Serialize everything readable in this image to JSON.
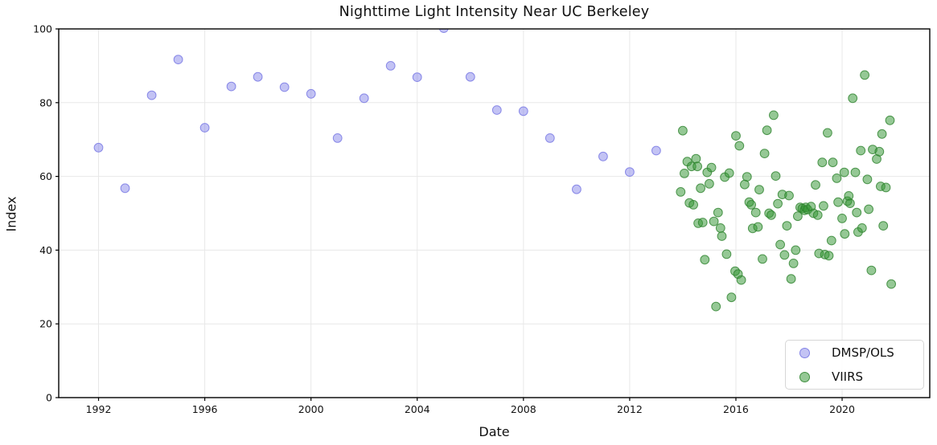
{
  "accent_colors": {
    "dmsp_fill": "rgba(122,122,230,0.45)",
    "dmsp_edge": "rgba(108,108,225,0.75)",
    "viirs_fill": "rgba(52,150,52,0.52)",
    "viirs_edge": "rgba(45,130,45,0.8)",
    "grid": "#e8e8e8",
    "spine": "#000000"
  },
  "chart_data": {
    "type": "scatter",
    "title": "Nighttime Light Intensity Near UC Berkeley",
    "xlabel": "Date",
    "ylabel": "Index",
    "xlim": [
      1990.5,
      2023.3
    ],
    "ylim": [
      0,
      100
    ],
    "xticks": [
      1992,
      1996,
      2000,
      2004,
      2008,
      2012,
      2016,
      2020
    ],
    "yticks": [
      0,
      20,
      40,
      60,
      80,
      100
    ],
    "grid": true,
    "legend_position": "lower right",
    "series": [
      {
        "name": "DMSP/OLS",
        "marker_fill": "rgba(122,122,230,0.45)",
        "marker_edge": "rgba(108,108,225,0.75)",
        "points": [
          [
            1992,
            67.8
          ],
          [
            1993,
            56.8
          ],
          [
            1994,
            82.0
          ],
          [
            1995,
            91.7
          ],
          [
            1996,
            73.2
          ],
          [
            1997,
            84.4
          ],
          [
            1998,
            87.0
          ],
          [
            1999,
            84.2
          ],
          [
            2000,
            82.4
          ],
          [
            2001,
            70.4
          ],
          [
            2002,
            81.2
          ],
          [
            2003,
            90.0
          ],
          [
            2004,
            86.9
          ],
          [
            2005,
            100.2
          ],
          [
            2006,
            87.0
          ],
          [
            2007,
            78.0
          ],
          [
            2008,
            77.7
          ],
          [
            2009,
            70.4
          ],
          [
            2010,
            56.5
          ],
          [
            2011,
            65.4
          ],
          [
            2012,
            61.2
          ],
          [
            2013,
            67.0
          ]
        ]
      },
      {
        "name": "VIIRS",
        "marker_fill": "rgba(52,150,52,0.52)",
        "marker_edge": "rgba(45,130,45,0.8)",
        "points": [
          [
            2013.92,
            55.8
          ],
          [
            2014.0,
            72.4
          ],
          [
            2014.06,
            60.8
          ],
          [
            2014.17,
            64.0
          ],
          [
            2014.25,
            52.8
          ],
          [
            2014.33,
            62.7
          ],
          [
            2014.4,
            52.3
          ],
          [
            2014.5,
            64.8
          ],
          [
            2014.55,
            62.7
          ],
          [
            2014.58,
            47.3
          ],
          [
            2014.67,
            56.8
          ],
          [
            2014.75,
            47.5
          ],
          [
            2014.83,
            37.4
          ],
          [
            2014.92,
            61.1
          ],
          [
            2015.0,
            58.0
          ],
          [
            2015.08,
            62.4
          ],
          [
            2015.17,
            47.8
          ],
          [
            2015.25,
            24.7
          ],
          [
            2015.33,
            50.2
          ],
          [
            2015.42,
            46.0
          ],
          [
            2015.47,
            43.8
          ],
          [
            2015.58,
            59.8
          ],
          [
            2015.65,
            38.9
          ],
          [
            2015.75,
            60.9
          ],
          [
            2015.83,
            27.2
          ],
          [
            2015.97,
            34.3
          ],
          [
            2016.0,
            71.0
          ],
          [
            2016.08,
            33.5
          ],
          [
            2016.13,
            68.3
          ],
          [
            2016.2,
            31.9
          ],
          [
            2016.33,
            57.8
          ],
          [
            2016.42,
            59.9
          ],
          [
            2016.5,
            53.0
          ],
          [
            2016.58,
            52.3
          ],
          [
            2016.63,
            45.9
          ],
          [
            2016.75,
            50.2
          ],
          [
            2016.83,
            46.3
          ],
          [
            2016.88,
            56.4
          ],
          [
            2017.0,
            37.6
          ],
          [
            2017.08,
            66.2
          ],
          [
            2017.17,
            72.5
          ],
          [
            2017.25,
            50.0
          ],
          [
            2017.33,
            49.5
          ],
          [
            2017.42,
            76.6
          ],
          [
            2017.5,
            60.1
          ],
          [
            2017.58,
            52.6
          ],
          [
            2017.67,
            41.5
          ],
          [
            2017.75,
            55.1
          ],
          [
            2017.83,
            38.7
          ],
          [
            2017.92,
            46.6
          ],
          [
            2018.0,
            54.8
          ],
          [
            2018.08,
            32.2
          ],
          [
            2018.17,
            36.4
          ],
          [
            2018.25,
            40.0
          ],
          [
            2018.33,
            49.2
          ],
          [
            2018.42,
            51.6
          ],
          [
            2018.5,
            51.3
          ],
          [
            2018.58,
            50.8
          ],
          [
            2018.63,
            51.6
          ],
          [
            2018.7,
            51.0
          ],
          [
            2018.83,
            51.8
          ],
          [
            2018.92,
            50.0
          ],
          [
            2019.0,
            57.7
          ],
          [
            2019.08,
            49.5
          ],
          [
            2019.13,
            39.1
          ],
          [
            2019.25,
            63.8
          ],
          [
            2019.3,
            52.0
          ],
          [
            2019.35,
            38.8
          ],
          [
            2019.45,
            71.8
          ],
          [
            2019.5,
            38.5
          ],
          [
            2019.6,
            42.6
          ],
          [
            2019.65,
            63.8
          ],
          [
            2019.8,
            59.5
          ],
          [
            2019.85,
            53.0
          ],
          [
            2020.0,
            48.6
          ],
          [
            2020.08,
            61.1
          ],
          [
            2020.1,
            44.4
          ],
          [
            2020.2,
            53.3
          ],
          [
            2020.25,
            54.7
          ],
          [
            2020.3,
            52.7
          ],
          [
            2020.4,
            81.2
          ],
          [
            2020.5,
            61.1
          ],
          [
            2020.55,
            50.2
          ],
          [
            2020.6,
            44.9
          ],
          [
            2020.7,
            67.0
          ],
          [
            2020.75,
            46.0
          ],
          [
            2020.85,
            87.5
          ],
          [
            2020.95,
            59.2
          ],
          [
            2021.0,
            51.1
          ],
          [
            2021.1,
            34.5
          ],
          [
            2021.15,
            67.3
          ],
          [
            2021.3,
            64.7
          ],
          [
            2021.4,
            66.7
          ],
          [
            2021.45,
            57.3
          ],
          [
            2021.5,
            71.5
          ],
          [
            2021.55,
            46.6
          ],
          [
            2021.65,
            57.0
          ],
          [
            2021.8,
            75.2
          ],
          [
            2021.85,
            30.8
          ]
        ]
      }
    ]
  }
}
